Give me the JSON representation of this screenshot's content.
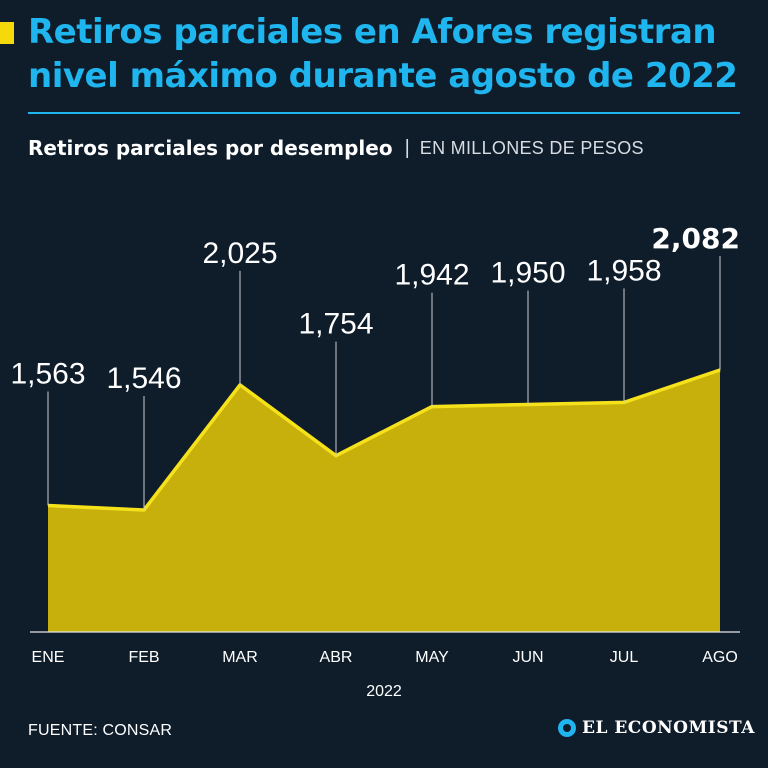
{
  "header": {
    "title": "Retiros parciales en Afores registran nivel máximo durante agosto de 2022",
    "subtitle": "Retiros parciales por desempleo",
    "separator": "|",
    "unit": "EN MILLONES DE PESOS"
  },
  "footer": {
    "source": "FUENTE: CONSAR",
    "logo_text": "EL ECONOMISTA"
  },
  "colors": {
    "background": "#0f1c2a",
    "title": "#1fb5ee",
    "accent": "#f5d90a",
    "area_fill": "#c8b00c",
    "line": "#f5e21a"
  },
  "chart_data": {
    "type": "area",
    "categories": [
      "ENE",
      "FEB",
      "MAR",
      "ABR",
      "MAY",
      "JUN",
      "JUL",
      "AGO"
    ],
    "values": [
      1563,
      1546,
      2025,
      1754,
      1942,
      1950,
      1958,
      2082
    ],
    "value_labels": [
      "1,563",
      "1,546",
      "2,025",
      "1,754",
      "1,942",
      "1,950",
      "1,958",
      "2,082"
    ],
    "highlight_index": 7,
    "xlabel": "2022",
    "ylabel": "",
    "grid": false,
    "legend": "none"
  }
}
